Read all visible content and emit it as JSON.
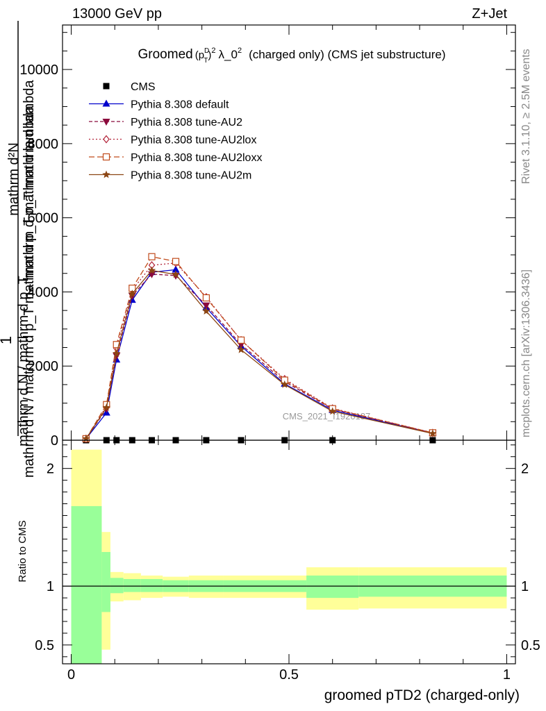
{
  "header": {
    "energy_label": "13000 GeV pp",
    "process_label": "Z+Jet"
  },
  "side_labels": {
    "rivet": "Rivet 3.1.10, ≥ 2.5M events",
    "mcplots": "mcplots.cern.ch [arXiv:1306.3436]"
  },
  "chart_data": [
    {
      "type": "line",
      "title": "Groomed (p_T^D)^2 λ_0^2  (charged only) (CMS jet substructure)",
      "title_parts": {
        "lead": "Groomed",
        "expr_open": "(p",
        "sup_d": "D",
        "sub_t": "T",
        "expr_close": ")",
        "sup_2": "2",
        "lambda": "λ_0",
        "sup_2b": "2",
        "tail": "(charged only) (CMS jet substructure)"
      },
      "ylabel_upper": "mathrm d²N",
      "ylabel_upper2": "mathrm d p_T mathrm d lambda",
      "ylabel_one": "1",
      "ylabel_lower": "mathrm d N / mathrm d p_T",
      "ylabel_lower2": "mathrm d N / mathrm d p_T mathrm d p_T mathrm d lambda",
      "watermark": "CMS_2021_I1920187",
      "ylim": [
        0,
        11200
      ],
      "xlim": [
        -0.02,
        1.02
      ],
      "yticks": [
        0,
        2000,
        4000,
        6000,
        8000,
        10000
      ],
      "ytick_labels": [
        "0",
        "2000",
        "4000",
        "6000",
        "8000",
        "10000"
      ],
      "x": [
        0.034,
        0.081,
        0.104,
        0.14,
        0.185,
        0.24,
        0.31,
        0.39,
        0.49,
        0.6,
        0.83
      ],
      "series": [
        {
          "name": "CMS",
          "color": "#000000",
          "marker": "square",
          "dash": "none",
          "values": [
            0,
            0,
            0,
            0,
            0,
            0,
            0,
            0,
            0,
            0,
            0
          ]
        },
        {
          "name": "Pythia 8.308 default",
          "color": "#0000cc",
          "marker": "triangle-up",
          "dash": "solid",
          "values": [
            40,
            740,
            2170,
            3780,
            4530,
            4600,
            3580,
            2540,
            1520,
            810,
            190
          ]
        },
        {
          "name": "Pythia 8.308 tune-AU2",
          "color": "#8b0a3c",
          "marker": "triangle-down",
          "dash": "5,3",
          "values": [
            40,
            850,
            2280,
            3900,
            4480,
            4440,
            3640,
            2580,
            1580,
            840,
            195
          ]
        },
        {
          "name": "Pythia 8.308 tune-AU2lox",
          "color": "#b22238",
          "marker": "diamond",
          "dash": "2,3",
          "values": [
            40,
            920,
            2480,
            4050,
            4720,
            4780,
            3860,
            2700,
            1650,
            860,
            200
          ]
        },
        {
          "name": "Pythia 8.308 tune-AU2loxx",
          "color": "#c04a1a",
          "marker": "square-open",
          "dash": "8,4",
          "values": [
            40,
            960,
            2580,
            4100,
            4950,
            4820,
            3840,
            2700,
            1620,
            850,
            200
          ]
        },
        {
          "name": "Pythia 8.308 tune-AU2m",
          "color": "#8b4513",
          "marker": "star",
          "dash": "solid",
          "values": [
            40,
            880,
            2340,
            3950,
            4580,
            4470,
            3480,
            2440,
            1500,
            780,
            180
          ]
        }
      ]
    },
    {
      "type": "area",
      "ylabel": "Ratio to CMS",
      "xlabel": "groomed pTD2 (charged-only)",
      "ylim": [
        0.34,
        2.24
      ],
      "xlim": [
        -0.02,
        1.02
      ],
      "yticks": [
        0.5,
        1,
        2
      ],
      "ytick_labels": [
        "0.5",
        "1",
        "2"
      ],
      "xticks": [
        0,
        0.5,
        1
      ],
      "xtick_labels": [
        "0",
        "0.5",
        "1"
      ],
      "bins": [
        {
          "x0": 0.0,
          "x1": 0.07,
          "stat_lo": 0.34,
          "stat_hi": 1.68,
          "tot_lo": 0.34,
          "tot_hi": 2.16
        },
        {
          "x0": 0.07,
          "x1": 0.09,
          "stat_lo": 0.78,
          "stat_hi": 1.29,
          "tot_lo": 0.46,
          "tot_hi": 1.46
        },
        {
          "x0": 0.09,
          "x1": 0.12,
          "stat_lo": 0.94,
          "stat_hi": 1.07,
          "tot_lo": 0.87,
          "tot_hi": 1.12
        },
        {
          "x0": 0.12,
          "x1": 0.16,
          "stat_lo": 0.95,
          "stat_hi": 1.06,
          "tot_lo": 0.88,
          "tot_hi": 1.11
        },
        {
          "x0": 0.16,
          "x1": 0.21,
          "stat_lo": 0.95,
          "stat_hi": 1.06,
          "tot_lo": 0.9,
          "tot_hi": 1.09
        },
        {
          "x0": 0.21,
          "x1": 0.27,
          "stat_lo": 0.95,
          "stat_hi": 1.05,
          "tot_lo": 0.91,
          "tot_hi": 1.08
        },
        {
          "x0": 0.27,
          "x1": 0.35,
          "stat_lo": 0.95,
          "stat_hi": 1.05,
          "tot_lo": 0.9,
          "tot_hi": 1.09
        },
        {
          "x0": 0.35,
          "x1": 0.54,
          "stat_lo": 0.95,
          "stat_hi": 1.05,
          "tot_lo": 0.9,
          "tot_hi": 1.09
        },
        {
          "x0": 0.54,
          "x1": 0.66,
          "stat_lo": 0.9,
          "stat_hi": 1.09,
          "tot_lo": 0.8,
          "tot_hi": 1.16
        },
        {
          "x0": 0.66,
          "x1": 1.0,
          "stat_lo": 0.91,
          "stat_hi": 1.09,
          "tot_lo": 0.81,
          "tot_hi": 1.16
        }
      ],
      "colors": {
        "stat": "#99ff99",
        "total": "#ffff99",
        "line": "#000000"
      }
    }
  ]
}
